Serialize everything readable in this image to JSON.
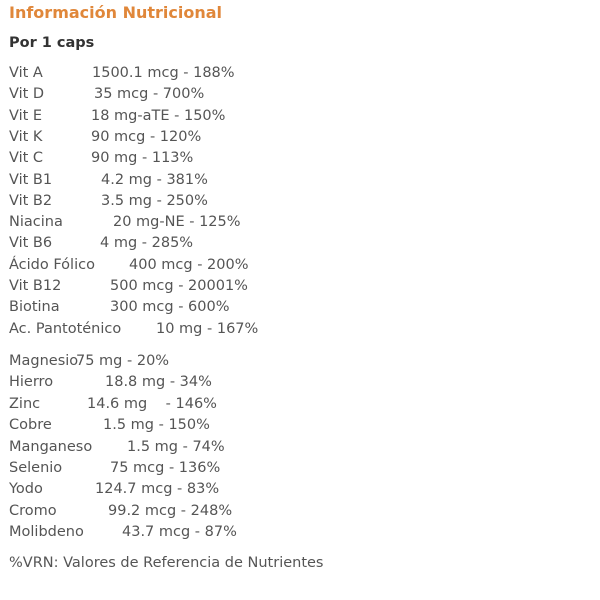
{
  "title": "Información Nutricional",
  "serving": "Por 1 caps",
  "vitamins": [
    {
      "name": "Vit A",
      "value": "1500.1 mcg - 188%"
    },
    {
      "name": "Vit D",
      "value": "35 mcg - 700%"
    },
    {
      "name": "Vit E",
      "value": "18 mg-aTE - 150%"
    },
    {
      "name": "Vit K",
      "value": "90 mcg - 120%"
    },
    {
      "name": "Vit C",
      "value": "90 mg - 113%"
    },
    {
      "name": "Vit B1",
      "value": "4.2 mg - 381%"
    },
    {
      "name": "Vit B2",
      "value": "3.5 mg - 250%"
    },
    {
      "name": "Niacina",
      "value": "20 mg-NE - 125%"
    },
    {
      "name": "Vit B6",
      "value": "4 mg - 285%"
    },
    {
      "name": "Ácido Fólico",
      "value": "400 mcg - 200%"
    },
    {
      "name": "Vit B12",
      "value": "500 mcg - 20001%"
    },
    {
      "name": "Biotina",
      "value": "300 mcg - 600%"
    },
    {
      "name": "Ac. Pantoténico",
      "value": "10 mg - 167%"
    }
  ],
  "minerals": [
    {
      "name": "Magnesio",
      "value": "75 mg - 20%"
    },
    {
      "name": "Hierro",
      "value": "18.8 mg - 34%"
    },
    {
      "name": "Zinc",
      "value": "14.6 mg    - 146%"
    },
    {
      "name": "Cobre",
      "value": "1.5 mg - 150%"
    },
    {
      "name": "Manganeso",
      "value": "1.5 mg - 74%"
    },
    {
      "name": "Selenio",
      "value": "75 mcg - 136%"
    },
    {
      "name": "Yodo",
      "value": "124.7 mcg - 83%"
    },
    {
      "name": "Cromo",
      "value": "99.2 mcg - 248%"
    },
    {
      "name": "Molibdeno",
      "value": "43.7 mcg - 87%"
    }
  ],
  "footnote": "%VRN: Valores de Referencia de Nutrientes"
}
